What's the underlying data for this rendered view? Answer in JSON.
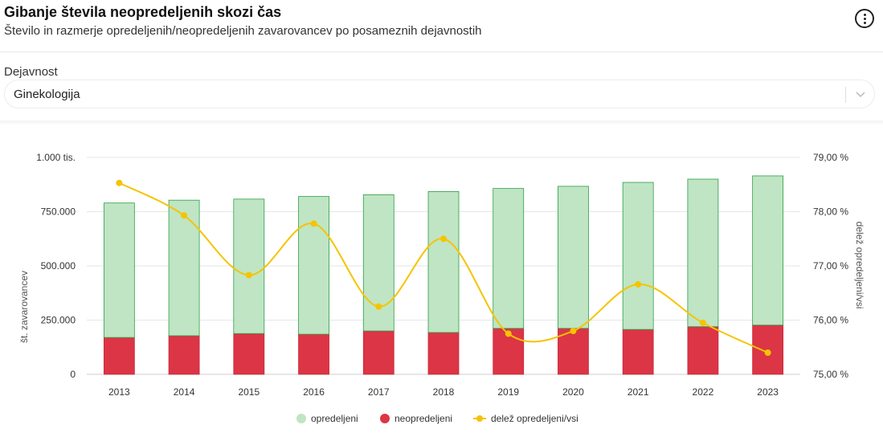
{
  "header": {
    "title": "Gibanje števila neopredeljenih skozi čas",
    "subtitle": "Število in razmerje opredeljenih/neopredeljenih zavarovancev po posameznih dejavnostih",
    "menu_icon": "more-vertical-icon"
  },
  "filter": {
    "label": "Dejavnost",
    "selected": "Ginekologija",
    "chevron_icon": "chevron-down-icon"
  },
  "colors": {
    "opredeljeni": "#bfe5c4",
    "opredeljeni_border": "#2e9e44",
    "neopredeljeni": "#dc3545",
    "delez": "#f5c400"
  },
  "chart_data": {
    "type": "bar",
    "stacked": true,
    "categories": [
      "2013",
      "2014",
      "2015",
      "2016",
      "2017",
      "2018",
      "2019",
      "2020",
      "2021",
      "2022",
      "2023"
    ],
    "series": [
      {
        "name": "opredeljeni",
        "axis": "left",
        "values": [
          620000,
          625000,
          620000,
          635000,
          628000,
          650000,
          645000,
          655000,
          678000,
          680000,
          688000
        ]
      },
      {
        "name": "neopredeljeni",
        "axis": "left",
        "values": [
          170000,
          178000,
          188000,
          185000,
          200000,
          193000,
          212000,
          212000,
          207000,
          220000,
          227000
        ]
      },
      {
        "name": "delež opredeljeni/vsi",
        "type": "line",
        "axis": "right",
        "values": [
          78.53,
          77.93,
          76.83,
          77.78,
          76.25,
          77.5,
          75.75,
          75.8,
          76.66,
          75.95,
          75.4
        ]
      }
    ],
    "ylabel": "št. zavarovancev",
    "y2label": "delež opredeljeni/vsi",
    "ylim": [
      0,
      1000000
    ],
    "y2lim": [
      75,
      79
    ],
    "yticks": [
      "0",
      "250.000",
      "500.000",
      "750.000",
      "1.000 tis."
    ],
    "y2ticks": [
      "75,00 %",
      "76,00 %",
      "77,00 %",
      "78,00 %",
      "79,00 %"
    ],
    "grid": true,
    "legend": "bottom-center"
  }
}
